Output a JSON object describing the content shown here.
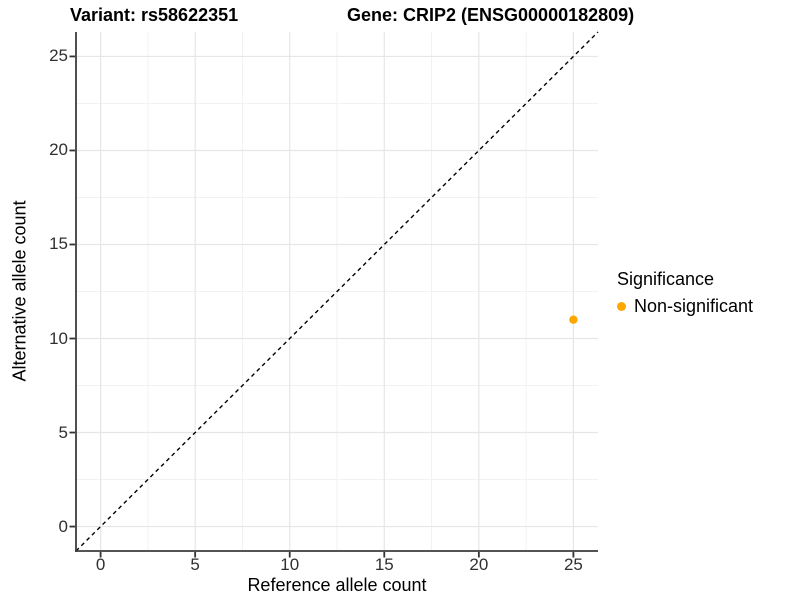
{
  "chart_data": {
    "type": "scatter",
    "titles": {
      "left": "Variant: rs58622351",
      "right": "Gene: CRIP2 (ENSG00000182809)"
    },
    "xlabel": "Reference allele count",
    "ylabel": "Alternative allele count",
    "x_ticks": [
      0,
      5,
      10,
      15,
      20,
      25
    ],
    "y_ticks": [
      0,
      5,
      10,
      15,
      20,
      25
    ],
    "xlim": [
      -1.3,
      26.3
    ],
    "ylim": [
      -1.3,
      26.3
    ],
    "grid": {
      "major": true,
      "minor": true
    },
    "points": [
      {
        "x": 25,
        "y": 11,
        "series": "Non-significant",
        "color": "#FFA500"
      }
    ],
    "reference_line": {
      "type": "identity",
      "slope": 1,
      "intercept": 0,
      "style": "dashed",
      "color": "#000000"
    },
    "legend": {
      "title": "Significance",
      "position": "right",
      "items": [
        {
          "label": "Non-significant",
          "color": "#FFA500",
          "marker": "circle"
        }
      ]
    }
  },
  "colors": {
    "grid_major": "#E6E6E6",
    "grid_minor": "#F2F2F2",
    "axis_line": "#3C3C3C",
    "tick_mark": "#333333",
    "tick_text": "#303030",
    "point": "#FFA500"
  }
}
